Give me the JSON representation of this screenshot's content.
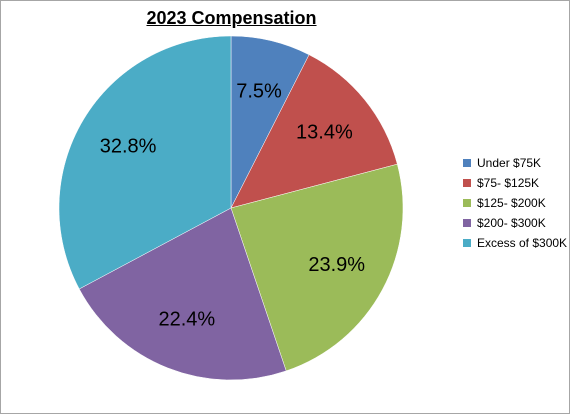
{
  "chart_data": {
    "type": "pie",
    "title": "2023 Compensation",
    "unit": "%",
    "categories": [
      "Under $75K",
      "$75- $125K",
      "$125- $200K",
      "$200- $300K",
      "Excess of $300K"
    ],
    "values": [
      7.5,
      13.4,
      23.9,
      22.4,
      32.8
    ],
    "labels": [
      "7.5%",
      "13.4%",
      "23.9%",
      "22.4%",
      "32.8%"
    ],
    "colors": [
      "#4f81bd",
      "#c0504d",
      "#9bbb59",
      "#8064a2",
      "#4bacc6"
    ],
    "start_angle": "12 o'clock",
    "direction": "clockwise",
    "legend_position": "right"
  }
}
